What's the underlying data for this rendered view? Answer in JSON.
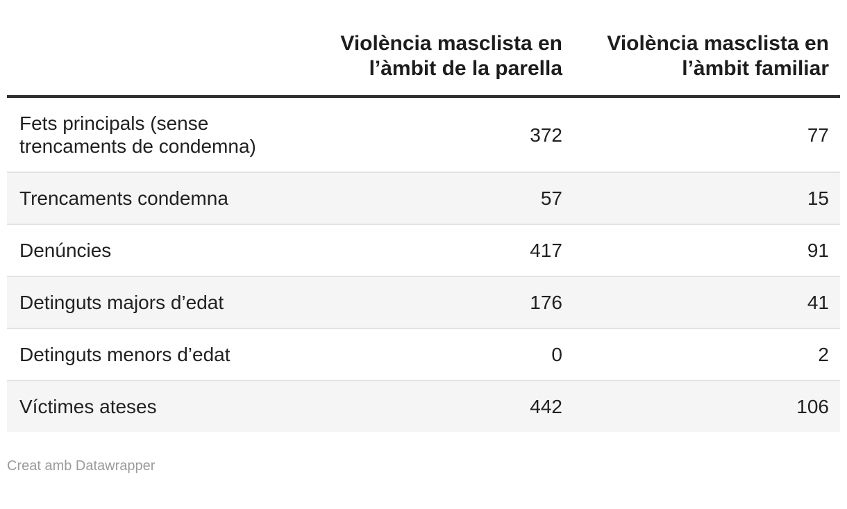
{
  "chart_data": {
    "type": "table",
    "title": "",
    "categories": [
      "Fets principals (sense trencaments de condemna)",
      "Trencaments condemna",
      "Denúncies",
      "Detinguts majors d’edat",
      "Detinguts menors d’edat",
      "Víctimes ateses"
    ],
    "series": [
      {
        "name": "Violència masclista en l’àmbit de la parella",
        "values": [
          372,
          57,
          417,
          176,
          0,
          442
        ]
      },
      {
        "name": "Violència masclista en l’àmbit familiar",
        "values": [
          77,
          15,
          91,
          41,
          2,
          106
        ]
      }
    ],
    "layout_hints": {
      "striped_rows": true,
      "value_alignment": "right",
      "header_alignment": "right",
      "grid": "horizontal-dividers-only",
      "legend_position": "none"
    }
  },
  "footer": {
    "credit": "Creat amb Datawrapper"
  },
  "colors": {
    "background": "#ffffff",
    "text": "#212121",
    "header_text": "#1d1d1d",
    "header_rule": "#2e2e2e",
    "row_stripe": "#f5f5f5",
    "row_divider": "#e3e3e3",
    "footer_text": "#9b9b9b"
  }
}
